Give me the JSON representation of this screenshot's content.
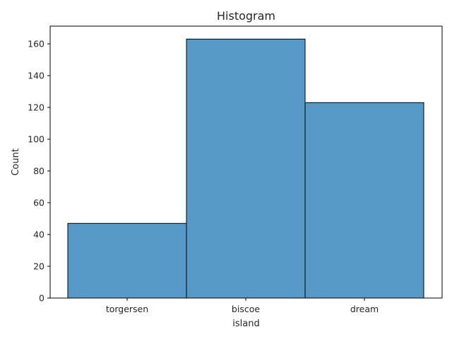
{
  "chart_data": {
    "type": "bar",
    "title": "Histogram",
    "xlabel": "island",
    "ylabel": "Count",
    "categories": [
      "torgersen",
      "biscoe",
      "dream"
    ],
    "values": [
      47,
      163,
      123
    ],
    "ylim": [
      0,
      171.15
    ],
    "yticks": [
      0,
      20,
      40,
      60,
      80,
      100,
      120,
      140,
      160
    ],
    "grid": false,
    "bar_color": "#5799c7",
    "edge_color": "#000000"
  }
}
